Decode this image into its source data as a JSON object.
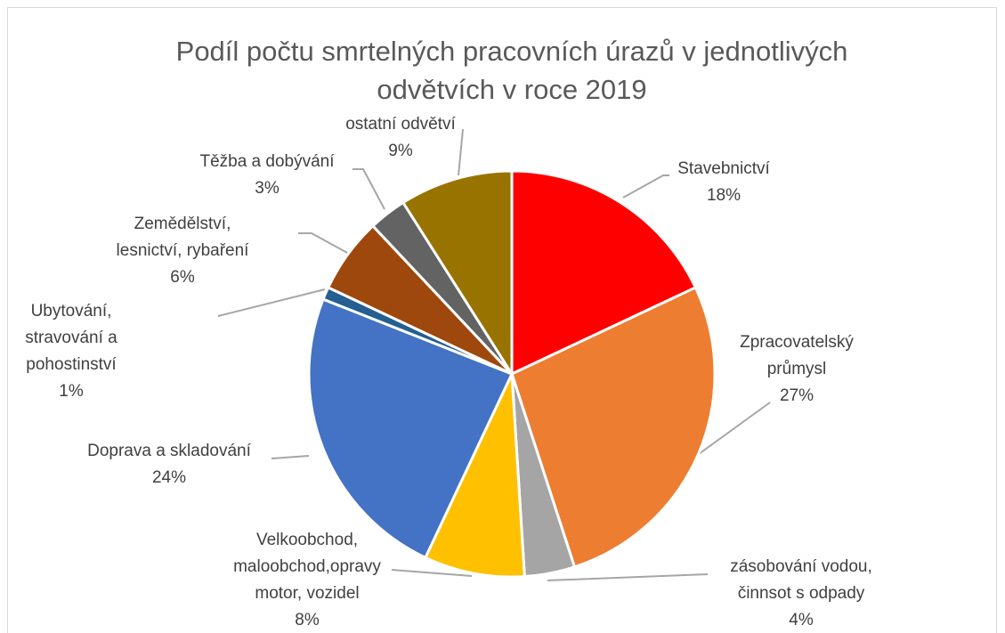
{
  "chart_data": {
    "type": "pie",
    "title": "Podíl počtu smrtelných pracovních úrazů v jednotlivých odvětvích v roce 2019",
    "categories": [
      "Stavebnictví",
      "Zpracovatelský\nprůmysl",
      "zásobování vodou,\nčinnsot s odpady",
      "Velkoobchod,\nmaloobchod,opravy\nmotor, vozidel",
      "Doprava a skladování",
      "Ubytování,\nstravování a\npohostinství",
      "Zemědělství,\nlesnictví, rybaření",
      "Těžba a dobývání",
      "ostatní odvětví"
    ],
    "values": [
      18,
      27,
      4,
      8,
      24,
      1,
      6,
      3,
      9
    ],
    "value_labels": [
      "18%",
      "27%",
      "4%",
      "8%",
      "24%",
      "1%",
      "6%",
      "3%",
      "9%"
    ],
    "colors": [
      "#ff0000",
      "#ed7d31",
      "#a5a5a5",
      "#ffc000",
      "#4472c4",
      "#255e91",
      "#9e480e",
      "#636363",
      "#997300"
    ]
  }
}
